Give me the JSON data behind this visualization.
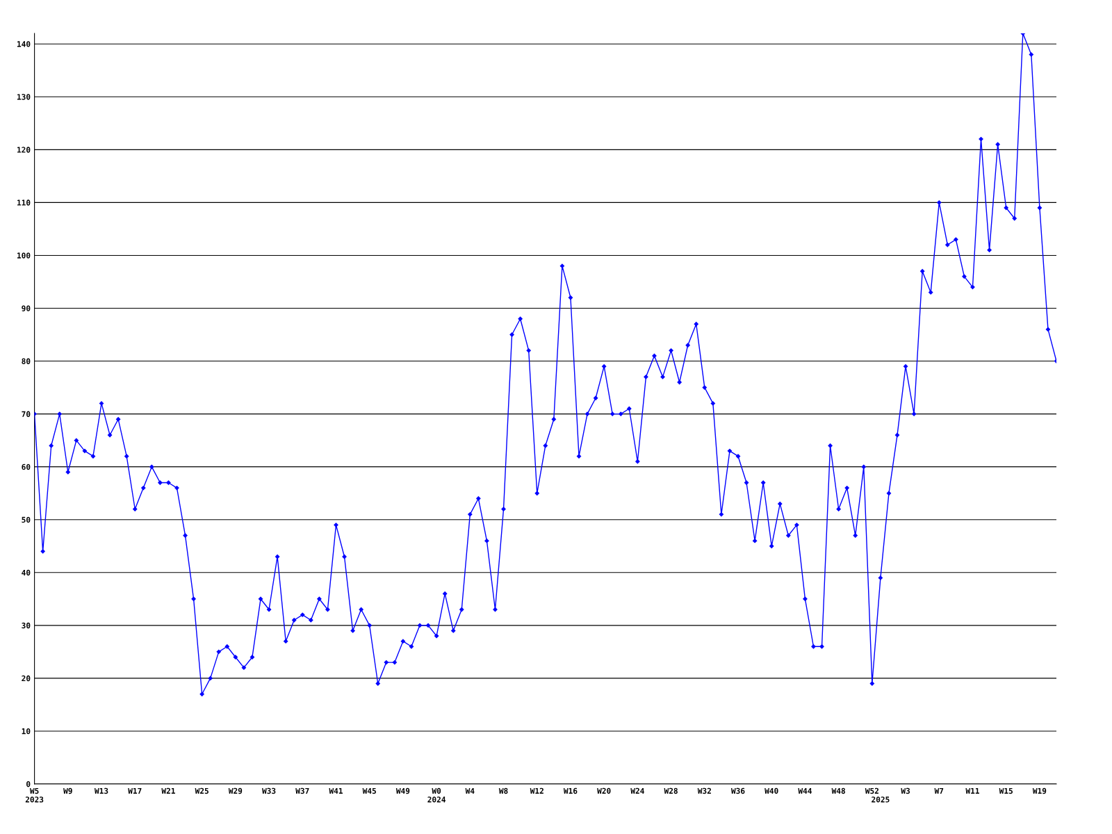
{
  "chart_data": {
    "type": "line",
    "categories": [
      "W5\n2023",
      null,
      null,
      null,
      "W9",
      null,
      null,
      null,
      "W13",
      null,
      null,
      null,
      "W17",
      null,
      null,
      null,
      "W21",
      null,
      null,
      null,
      "W25",
      null,
      null,
      null,
      "W29",
      null,
      null,
      null,
      "W33",
      null,
      null,
      null,
      "W37",
      null,
      null,
      null,
      "W41",
      null,
      null,
      null,
      "W45",
      null,
      null,
      null,
      "W49",
      null,
      null,
      null,
      "W0\n2024",
      null,
      null,
      null,
      "W4",
      null,
      null,
      null,
      "W8",
      null,
      null,
      null,
      "W12",
      null,
      null,
      null,
      "W16",
      null,
      null,
      null,
      "W20",
      null,
      null,
      null,
      "W24",
      null,
      null,
      null,
      "W28",
      null,
      null,
      null,
      "W32",
      null,
      null,
      null,
      "W36",
      null,
      null,
      null,
      "W40",
      null,
      null,
      null,
      "W44",
      null,
      null,
      null,
      "W48",
      null,
      null,
      null,
      "W52",
      "\n2025",
      null,
      null,
      "W3",
      null,
      null,
      null,
      "W7",
      null,
      null,
      null,
      "W11",
      null,
      null,
      null,
      "W15",
      null,
      null,
      null,
      "W19",
      null,
      null
    ],
    "series": [
      {
        "color": "#0000ff",
        "values": [
          70,
          44,
          64,
          70,
          59,
          65,
          63,
          62,
          72,
          66,
          69,
          62,
          52,
          56,
          60,
          57,
          57,
          56,
          47,
          35,
          17,
          20,
          25,
          26,
          24,
          22,
          24,
          35,
          33,
          43,
          27,
          31,
          32,
          31,
          35,
          33,
          49,
          43,
          29,
          33,
          30,
          19,
          23,
          23,
          27,
          26,
          30,
          30,
          28,
          36,
          29,
          33,
          51,
          54,
          46,
          33,
          52,
          85,
          88,
          82,
          55,
          64,
          69,
          98,
          92,
          62,
          70,
          73,
          79,
          70,
          70,
          71,
          61,
          77,
          81,
          77,
          82,
          76,
          83,
          87,
          75,
          72,
          51,
          63,
          62,
          57,
          46,
          57,
          45,
          53,
          47,
          49,
          35,
          26,
          26,
          64,
          52,
          56,
          47,
          60,
          19,
          39,
          55,
          66,
          79,
          70,
          97,
          93,
          110,
          102,
          103,
          96,
          94,
          122,
          101,
          121,
          109,
          107,
          142,
          138,
          109,
          86,
          80
        ]
      }
    ],
    "ylim": [
      0,
      142
    ],
    "yticks": [
      0,
      10,
      20,
      30,
      40,
      50,
      60,
      70,
      80,
      90,
      100,
      110,
      120,
      130,
      140
    ],
    "grid": "y",
    "marker": "diamond",
    "line_style": "solid"
  }
}
